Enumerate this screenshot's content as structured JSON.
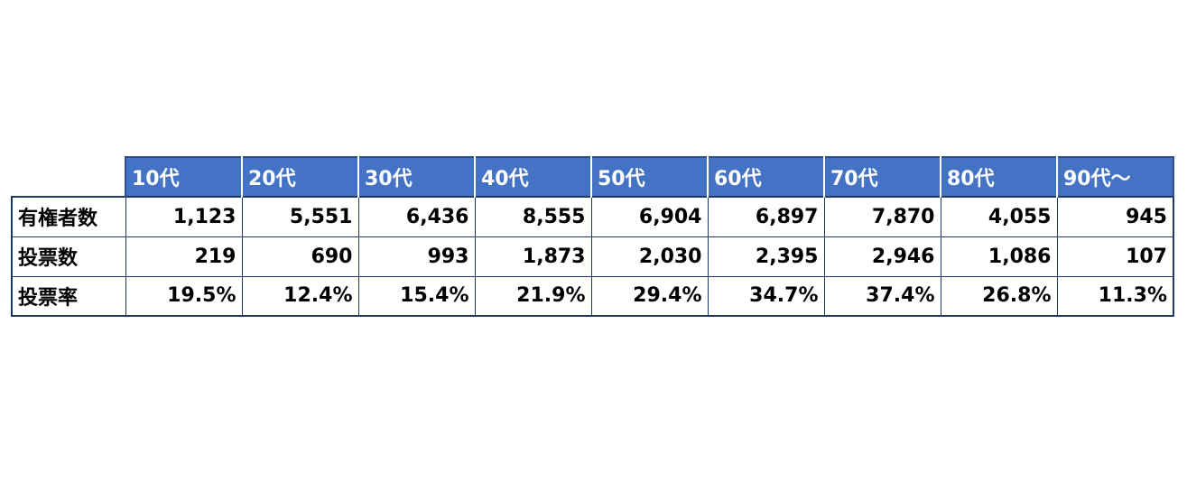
{
  "chart_data": {
    "type": "table",
    "columns": [
      "10代",
      "20代",
      "30代",
      "40代",
      "50代",
      "60代",
      "70代",
      "80代",
      "90代～"
    ],
    "rows": [
      {
        "label": "有権者数",
        "cells": [
          "1,123",
          "5,551",
          "6,436",
          "8,555",
          "6,904",
          "6,897",
          "7,870",
          "4,055",
          "945"
        ],
        "values": [
          1123,
          5551,
          6436,
          8555,
          6904,
          6897,
          7870,
          4055,
          945
        ]
      },
      {
        "label": "投票数",
        "cells": [
          "219",
          "690",
          "993",
          "1,873",
          "2,030",
          "2,395",
          "2,946",
          "1,086",
          "107"
        ],
        "values": [
          219,
          690,
          993,
          1873,
          2030,
          2395,
          2946,
          1086,
          107
        ]
      },
      {
        "label": "投票率",
        "cells": [
          "19.5%",
          "12.4%",
          "15.4%",
          "21.9%",
          "29.4%",
          "34.7%",
          "37.4%",
          "26.8%",
          "11.3%"
        ],
        "values": [
          19.5,
          12.4,
          15.4,
          21.9,
          29.4,
          34.7,
          37.4,
          26.8,
          11.3
        ]
      }
    ]
  },
  "colors": {
    "header_background": "#4472c4",
    "header_text": "#ffffff",
    "border": "#1f3864",
    "body_text": "#000000"
  }
}
